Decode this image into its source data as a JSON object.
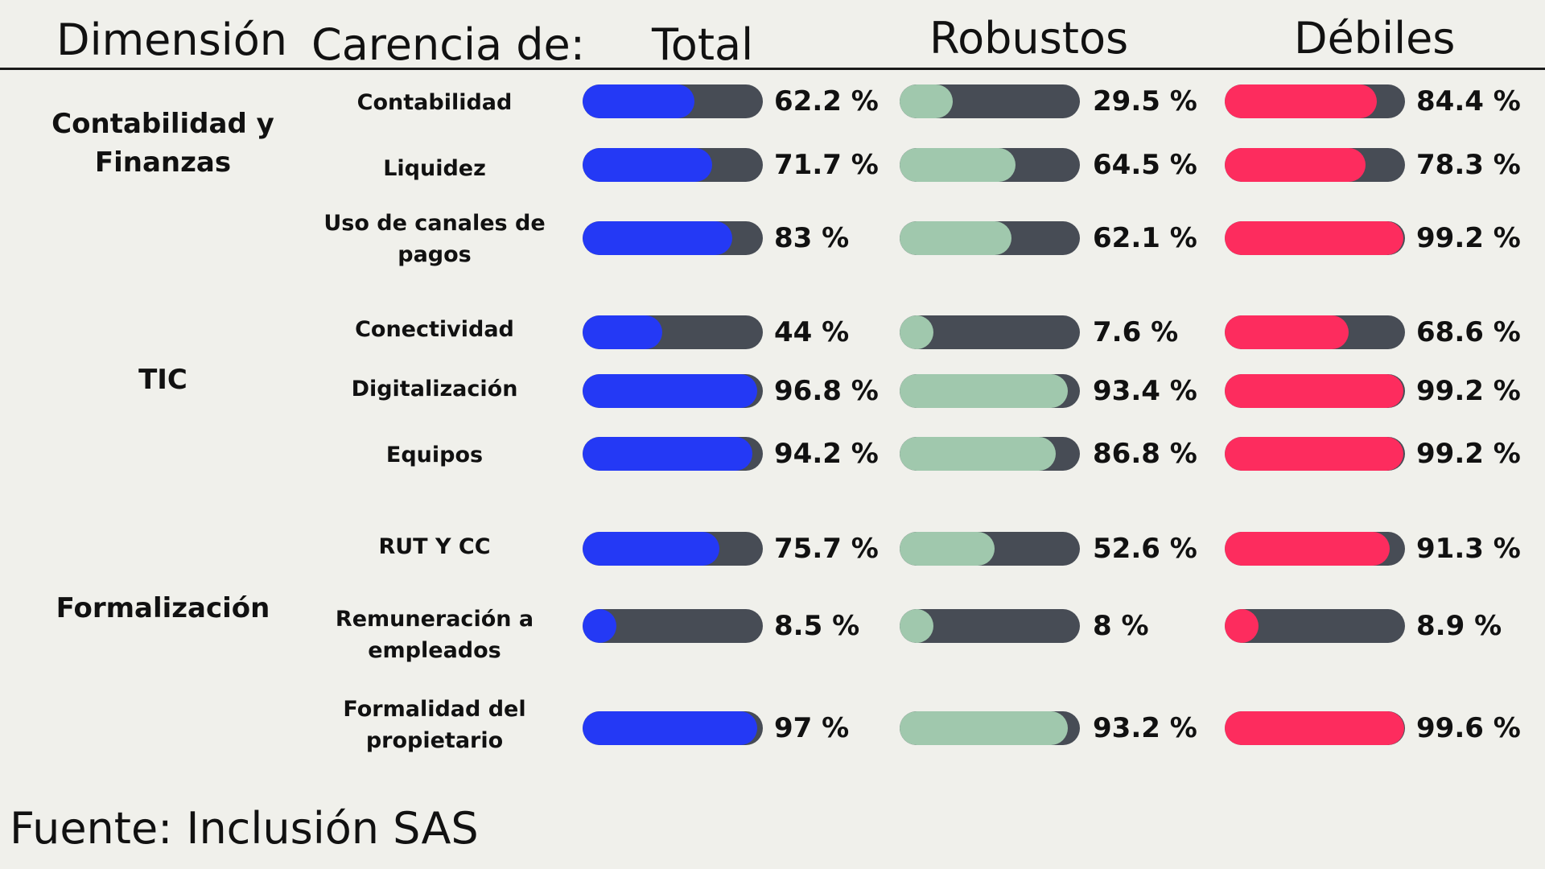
{
  "headers": {
    "dimension": "Dimensión",
    "carencia": "Carencia de:",
    "total": "Total",
    "robustos": "Robustos",
    "debiles": "Débiles"
  },
  "source": "Fuente: Inclusión SAS",
  "dimensions": [
    {
      "label": "Contabilidad y Finanzas"
    },
    {
      "label": "TIC"
    },
    {
      "label": "Formalización"
    }
  ],
  "colors": {
    "total": "#2439f5",
    "robustos": "#a0c8ad",
    "debiles": "#fd2c5e",
    "track": "#474c55"
  },
  "chart_data": {
    "type": "bar",
    "categories": [
      "Contabilidad",
      "Liquidez",
      "Uso de canales de pagos",
      "Conectividad",
      "Digitalización",
      "Equipos",
      "RUT Y CC",
      "Remuneración a empleados",
      "Formalidad del propietario"
    ],
    "value_labels": {
      "total": [
        "62.2 %",
        "71.7 %",
        "83 %",
        "44 %",
        "96.8 %",
        "94.2 %",
        "75.7 %",
        "8.5 %",
        "97 %"
      ],
      "robustos": [
        "29.5 %",
        "64.5 %",
        "62.1 %",
        "7.6 %",
        "93.4 %",
        "86.8 %",
        "52.6 %",
        "8 %",
        "93.2 %"
      ],
      "debiles": [
        "84.4 %",
        "78.3 %",
        "99.2 %",
        "68.6 %",
        "99.2 %",
        "99.2 %",
        "91.3 %",
        "8.9 %",
        "99.6 %"
      ]
    },
    "series": [
      {
        "name": "Total",
        "values": [
          62.2,
          71.7,
          83,
          44,
          96.8,
          94.2,
          75.7,
          8.5,
          97
        ]
      },
      {
        "name": "Robustos",
        "values": [
          29.5,
          64.5,
          62.1,
          7.6,
          93.4,
          86.8,
          52.6,
          8,
          93.2
        ]
      },
      {
        "name": "Débiles",
        "values": [
          84.4,
          78.3,
          99.2,
          68.6,
          99.2,
          99.2,
          91.3,
          8.9,
          99.6
        ]
      }
    ],
    "ylim": [
      0,
      100
    ]
  }
}
